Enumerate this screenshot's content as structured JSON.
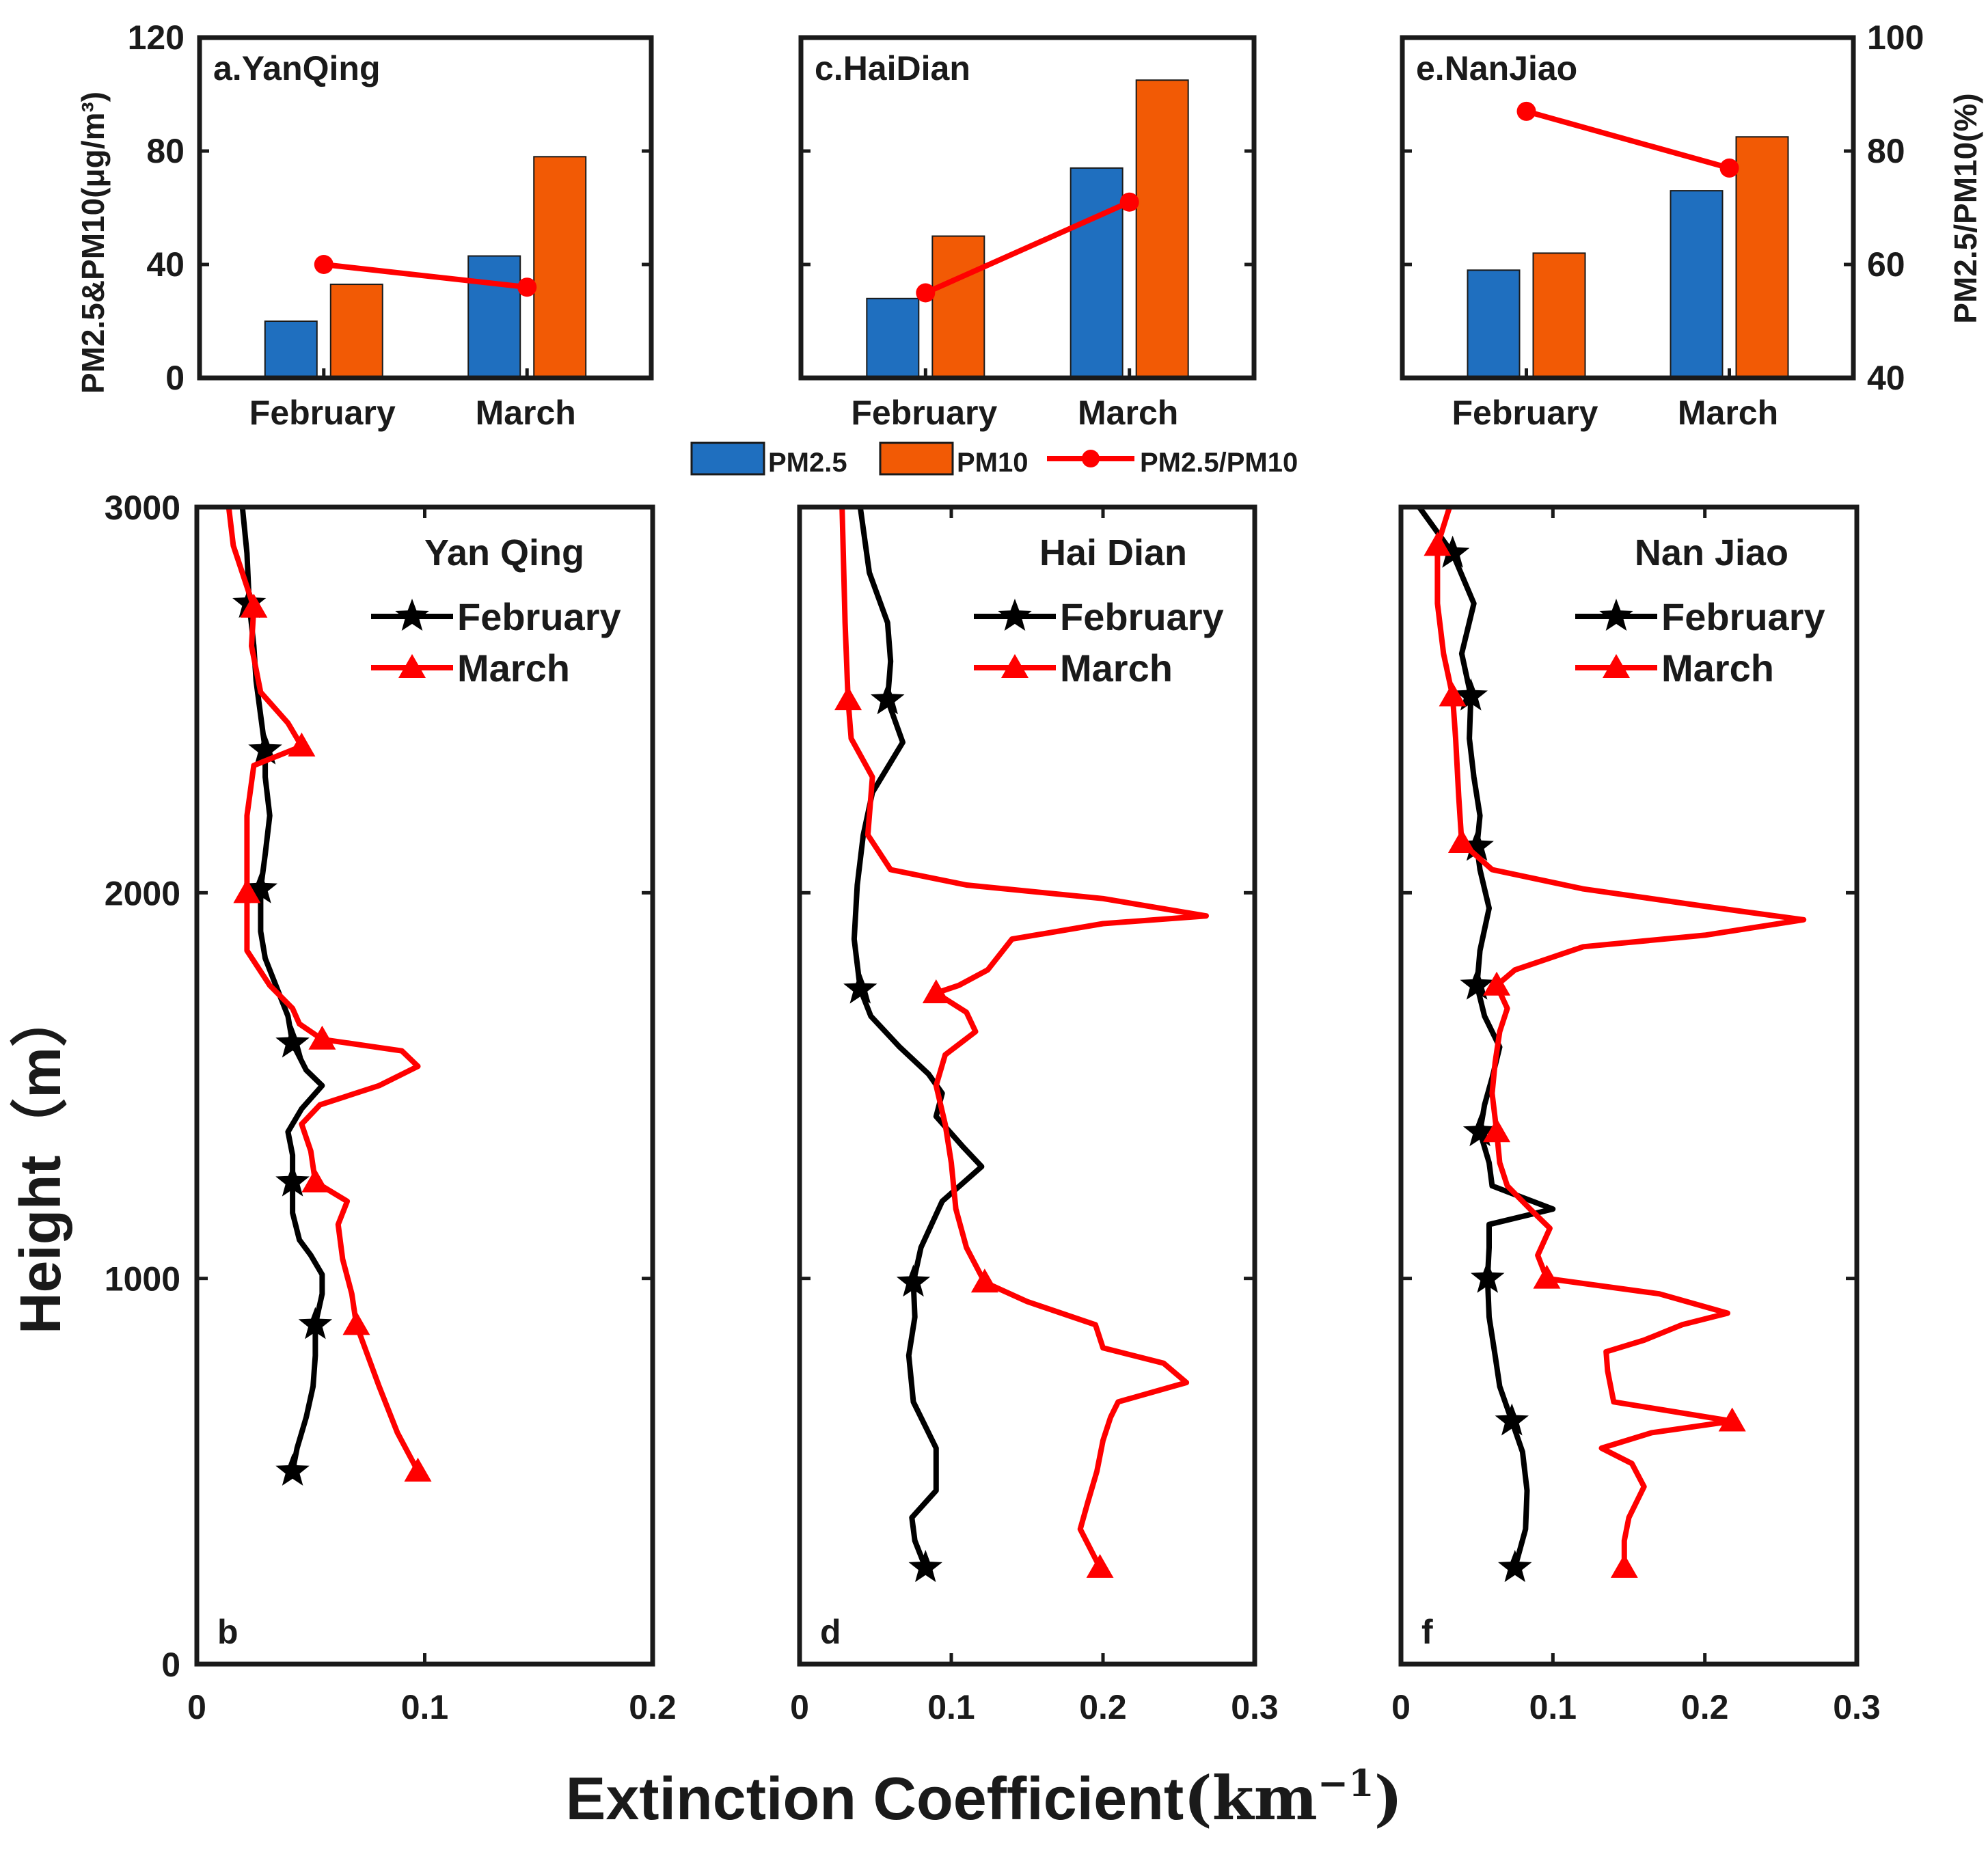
{
  "colors": {
    "pm25": "#1f6fbf",
    "pm10": "#f25a05",
    "ratio": "#ff0000",
    "february": "#000000",
    "march": "#ff0000",
    "axis": "#1a1a1a"
  },
  "chart_data": [
    {
      "type": "bar",
      "panel": "a",
      "title": "a.YanQing",
      "categories": [
        "February",
        "March"
      ],
      "series": [
        {
          "name": "PM2.5",
          "values": [
            20,
            43
          ]
        },
        {
          "name": "PM10",
          "values": [
            33,
            78
          ]
        }
      ],
      "line_series": {
        "name": "PM2.5/PM10",
        "values": [
          60,
          56
        ],
        "axis": "right"
      },
      "ylabel": "PM2.5&PM10(μg/m³)",
      "ylim": [
        0,
        120
      ],
      "yticks": [
        "0",
        "40",
        "80",
        "120"
      ],
      "y2lim": [
        40,
        100
      ],
      "y2ticks": []
    },
    {
      "type": "bar",
      "panel": "c",
      "title": "c.HaiDian",
      "categories": [
        "February",
        "March"
      ],
      "series": [
        {
          "name": "PM2.5",
          "values": [
            28,
            74
          ]
        },
        {
          "name": "PM10",
          "values": [
            50,
            105
          ]
        }
      ],
      "line_series": {
        "name": "PM2.5/PM10",
        "values": [
          55,
          71
        ],
        "axis": "right"
      },
      "ylim": [
        0,
        120
      ],
      "yticks": [],
      "y2lim": [
        40,
        100
      ],
      "y2ticks": []
    },
    {
      "type": "bar",
      "panel": "e",
      "title": "e.NanJiao",
      "categories": [
        "February",
        "March"
      ],
      "series": [
        {
          "name": "PM2.5",
          "values": [
            38,
            66
          ]
        },
        {
          "name": "PM10",
          "values": [
            44,
            85
          ]
        }
      ],
      "line_series": {
        "name": "PM2.5/PM10",
        "values": [
          87,
          77
        ],
        "axis": "right"
      },
      "ylim": [
        0,
        120
      ],
      "yticks": [],
      "y2lim": [
        40,
        100
      ],
      "y2ticks": [
        "40",
        "60",
        "80",
        "100"
      ],
      "y2label": "PM2.5/PM10(%)"
    },
    {
      "type": "line",
      "panel": "b",
      "title": "Yan Qing",
      "letter": "b",
      "xlim": [
        0,
        0.2
      ],
      "xticks": [
        "0",
        "0.1",
        "0.2"
      ],
      "ylim": [
        0,
        3000
      ],
      "yticks": [
        "0",
        "1000",
        "2000",
        "3000"
      ],
      "ylabel": "Height（m）",
      "series": [
        {
          "name": "February",
          "marker": "star",
          "markers_at": [
            500,
            880,
            1250,
            1610,
            2010,
            2370,
            2750
          ],
          "points": [
            [
              0.042,
              500
            ],
            [
              0.044,
              560
            ],
            [
              0.048,
              640
            ],
            [
              0.051,
              720
            ],
            [
              0.052,
              800
            ],
            [
              0.052,
              880
            ],
            [
              0.055,
              960
            ],
            [
              0.055,
              1010
            ],
            [
              0.05,
              1060
            ],
            [
              0.045,
              1100
            ],
            [
              0.042,
              1170
            ],
            [
              0.042,
              1250
            ],
            [
              0.042,
              1320
            ],
            [
              0.04,
              1380
            ],
            [
              0.046,
              1440
            ],
            [
              0.055,
              1500
            ],
            [
              0.048,
              1540
            ],
            [
              0.042,
              1610
            ],
            [
              0.04,
              1680
            ],
            [
              0.036,
              1740
            ],
            [
              0.03,
              1830
            ],
            [
              0.028,
              1900
            ],
            [
              0.028,
              2010
            ],
            [
              0.03,
              2100
            ],
            [
              0.032,
              2200
            ],
            [
              0.03,
              2300
            ],
            [
              0.03,
              2370
            ],
            [
              0.028,
              2460
            ],
            [
              0.026,
              2550
            ],
            [
              0.025,
              2640
            ],
            [
              0.023,
              2750
            ],
            [
              0.022,
              2880
            ],
            [
              0.02,
              3000
            ]
          ]
        },
        {
          "name": "March",
          "marker": "triangle",
          "markers_at": [
            500,
            880,
            1250,
            1620,
            2000,
            2380,
            2740
          ],
          "points": [
            [
              0.097,
              500
            ],
            [
              0.088,
              600
            ],
            [
              0.08,
              720
            ],
            [
              0.07,
              880
            ],
            [
              0.068,
              960
            ],
            [
              0.064,
              1050
            ],
            [
              0.062,
              1140
            ],
            [
              0.066,
              1200
            ],
            [
              0.052,
              1250
            ],
            [
              0.05,
              1330
            ],
            [
              0.046,
              1400
            ],
            [
              0.054,
              1450
            ],
            [
              0.08,
              1500
            ],
            [
              0.097,
              1550
            ],
            [
              0.09,
              1590
            ],
            [
              0.055,
              1620
            ],
            [
              0.045,
              1660
            ],
            [
              0.042,
              1700
            ],
            [
              0.032,
              1760
            ],
            [
              0.022,
              1850
            ],
            [
              0.022,
              2000
            ],
            [
              0.022,
              2200
            ],
            [
              0.025,
              2330
            ],
            [
              0.046,
              2380
            ],
            [
              0.04,
              2440
            ],
            [
              0.028,
              2520
            ],
            [
              0.024,
              2640
            ],
            [
              0.025,
              2740
            ],
            [
              0.016,
              2900
            ],
            [
              0.014,
              3000
            ]
          ]
        }
      ]
    },
    {
      "type": "line",
      "panel": "d",
      "title": "Hai Dian",
      "letter": "d",
      "xlim": [
        0,
        0.3
      ],
      "xticks": [
        "0",
        "0.1",
        "0.2",
        "0.3"
      ],
      "ylim": [
        0,
        3000
      ],
      "yticks": [],
      "series": [
        {
          "name": "February",
          "marker": "star",
          "markers_at": [
            250,
            990,
            1750,
            2500
          ],
          "points": [
            [
              0.083,
              250
            ],
            [
              0.076,
              320
            ],
            [
              0.074,
              380
            ],
            [
              0.09,
              450
            ],
            [
              0.09,
              560
            ],
            [
              0.075,
              680
            ],
            [
              0.072,
              800
            ],
            [
              0.076,
              900
            ],
            [
              0.075,
              990
            ],
            [
              0.08,
              1080
            ],
            [
              0.094,
              1200
            ],
            [
              0.12,
              1290
            ],
            [
              0.108,
              1340
            ],
            [
              0.09,
              1420
            ],
            [
              0.094,
              1480
            ],
            [
              0.085,
              1530
            ],
            [
              0.066,
              1600
            ],
            [
              0.047,
              1680
            ],
            [
              0.04,
              1750
            ],
            [
              0.036,
              1880
            ],
            [
              0.038,
              2020
            ],
            [
              0.042,
              2150
            ],
            [
              0.048,
              2260
            ],
            [
              0.068,
              2390
            ],
            [
              0.058,
              2500
            ],
            [
              0.06,
              2600
            ],
            [
              0.058,
              2700
            ],
            [
              0.046,
              2830
            ],
            [
              0.04,
              3000
            ]
          ]
        },
        {
          "name": "March",
          "marker": "triangle",
          "markers_at": [
            250,
            990,
            1740,
            2500
          ],
          "points": [
            [
              0.198,
              250
            ],
            [
              0.185,
              350
            ],
            [
              0.19,
              420
            ],
            [
              0.196,
              500
            ],
            [
              0.2,
              580
            ],
            [
              0.205,
              640
            ],
            [
              0.21,
              680
            ],
            [
              0.255,
              730
            ],
            [
              0.24,
              780
            ],
            [
              0.2,
              820
            ],
            [
              0.195,
              880
            ],
            [
              0.15,
              940
            ],
            [
              0.122,
              990
            ],
            [
              0.11,
              1080
            ],
            [
              0.103,
              1180
            ],
            [
              0.1,
              1300
            ],
            [
              0.096,
              1400
            ],
            [
              0.09,
              1500
            ],
            [
              0.096,
              1580
            ],
            [
              0.116,
              1640
            ],
            [
              0.11,
              1690
            ],
            [
              0.09,
              1740
            ],
            [
              0.105,
              1760
            ],
            [
              0.124,
              1800
            ],
            [
              0.14,
              1880
            ],
            [
              0.2,
              1920
            ],
            [
              0.268,
              1940
            ],
            [
              0.2,
              1985
            ],
            [
              0.11,
              2020
            ],
            [
              0.06,
              2060
            ],
            [
              0.045,
              2150
            ],
            [
              0.048,
              2300
            ],
            [
              0.034,
              2400
            ],
            [
              0.032,
              2500
            ],
            [
              0.03,
              2700
            ],
            [
              0.028,
              3000
            ]
          ]
        }
      ]
    },
    {
      "type": "line",
      "panel": "f",
      "title": "Nan Jiao",
      "letter": "f",
      "xlim": [
        0,
        0.3
      ],
      "xticks": [
        "0",
        "0.1",
        "0.2",
        "0.3"
      ],
      "ylim": [
        0,
        3000
      ],
      "yticks": [],
      "series": [
        {
          "name": "February",
          "marker": "star",
          "markers_at": [
            250,
            630,
            1000,
            1380,
            1760,
            2120,
            2510,
            2880
          ],
          "points": [
            [
              0.075,
              250
            ],
            [
              0.082,
              350
            ],
            [
              0.083,
              450
            ],
            [
              0.08,
              550
            ],
            [
              0.073,
              630
            ],
            [
              0.065,
              720
            ],
            [
              0.062,
              800
            ],
            [
              0.058,
              900
            ],
            [
              0.057,
              1000
            ],
            [
              0.058,
              1080
            ],
            [
              0.058,
              1140
            ],
            [
              0.1,
              1180
            ],
            [
              0.08,
              1210
            ],
            [
              0.06,
              1240
            ],
            [
              0.058,
              1300
            ],
            [
              0.052,
              1380
            ],
            [
              0.055,
              1450
            ],
            [
              0.06,
              1520
            ],
            [
              0.065,
              1600
            ],
            [
              0.055,
              1680
            ],
            [
              0.05,
              1760
            ],
            [
              0.052,
              1850
            ],
            [
              0.058,
              1960
            ],
            [
              0.052,
              2060
            ],
            [
              0.05,
              2120
            ],
            [
              0.052,
              2200
            ],
            [
              0.048,
              2300
            ],
            [
              0.045,
              2400
            ],
            [
              0.046,
              2510
            ],
            [
              0.04,
              2620
            ],
            [
              0.048,
              2750
            ],
            [
              0.034,
              2880
            ],
            [
              0.012,
              3000
            ]
          ]
        },
        {
          "name": "March",
          "marker": "triangle",
          "markers_at": [
            250,
            1000,
            1380,
            1760,
            2130,
            2510,
            2900,
            630
          ],
          "points": [
            [
              0.147,
              250
            ],
            [
              0.147,
              320
            ],
            [
              0.15,
              380
            ],
            [
              0.16,
              460
            ],
            [
              0.152,
              520
            ],
            [
              0.132,
              560
            ],
            [
              0.165,
              600
            ],
            [
              0.218,
              630
            ],
            [
              0.14,
              680
            ],
            [
              0.136,
              760
            ],
            [
              0.135,
              810
            ],
            [
              0.16,
              840
            ],
            [
              0.185,
              880
            ],
            [
              0.215,
              910
            ],
            [
              0.17,
              960
            ],
            [
              0.096,
              1000
            ],
            [
              0.09,
              1060
            ],
            [
              0.098,
              1130
            ],
            [
              0.085,
              1180
            ],
            [
              0.07,
              1240
            ],
            [
              0.065,
              1300
            ],
            [
              0.063,
              1380
            ],
            [
              0.06,
              1480
            ],
            [
              0.062,
              1560
            ],
            [
              0.065,
              1640
            ],
            [
              0.07,
              1700
            ],
            [
              0.063,
              1760
            ],
            [
              0.075,
              1800
            ],
            [
              0.12,
              1860
            ],
            [
              0.2,
              1890
            ],
            [
              0.265,
              1930
            ],
            [
              0.2,
              1965
            ],
            [
              0.12,
              2010
            ],
            [
              0.06,
              2060
            ],
            [
              0.04,
              2130
            ],
            [
              0.038,
              2250
            ],
            [
              0.036,
              2400
            ],
            [
              0.034,
              2510
            ],
            [
              0.028,
              2620
            ],
            [
              0.024,
              2750
            ],
            [
              0.024,
              2900
            ],
            [
              0.032,
              3000
            ]
          ]
        }
      ]
    }
  ],
  "legend": {
    "items": [
      "PM2.5",
      "PM10",
      "PM2.5/PM10"
    ]
  },
  "panel_legend": {
    "items": [
      "February",
      "March"
    ]
  },
  "axes": {
    "xlabel_main": "Extinction Coefficient",
    "xlabel_unit": "(km",
    "xlabel_exp": "−1",
    "xlabel_close": ")"
  }
}
